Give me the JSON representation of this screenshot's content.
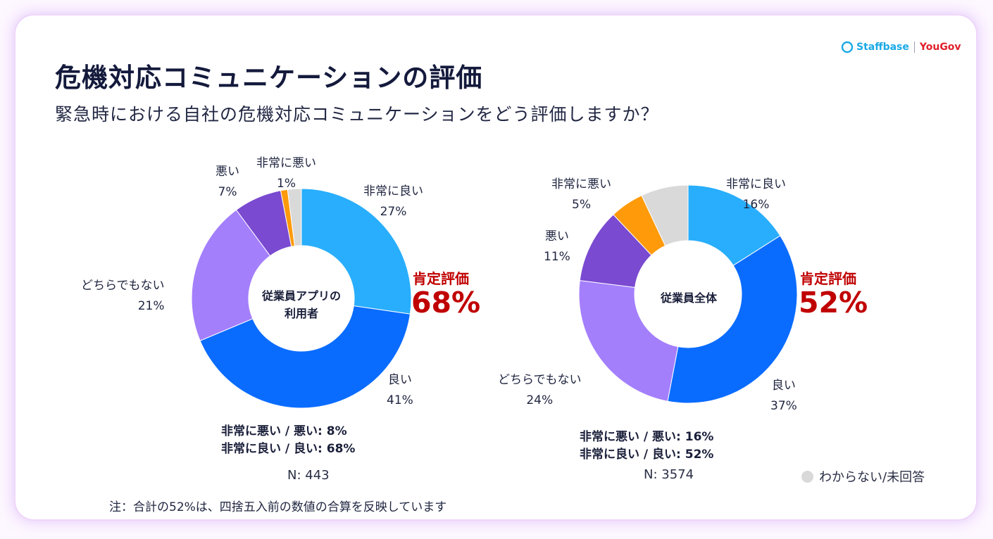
{
  "title": "危機対応コミュニケーションの評価",
  "subtitle": "緊急時における自社の危機対応コミュニケーションをどう評価しますか？",
  "logo": {
    "brand1": "Staffbase",
    "brand2": "YouGov"
  },
  "colors": {
    "very_good": "#28aefc",
    "good": "#0a6cff",
    "neutral": "#a47ffc",
    "bad": "#7a4ad0",
    "very_bad": "#ff9a0a",
    "unknown": "#d9d9d9",
    "accent_red": "#c00000"
  },
  "chart_data": [
    {
      "type": "pie",
      "variant": "donut",
      "center_label": [
        "従業員アプリの",
        "利用者"
      ],
      "categories": [
        "非常に良い",
        "良い",
        "どちらでもない",
        "悪い",
        "非常に悪い",
        "わからない/未回答"
      ],
      "values": [
        27,
        41,
        21,
        7,
        1,
        2
      ],
      "value_labels": [
        "27%",
        "41%",
        "21%",
        "7%",
        "1%",
        ""
      ],
      "positive_title": "肯定評価",
      "positive_value": "68%",
      "summary": [
        "非常に悪い / 悪い: 8%",
        "非常に良い / 良い: 68%"
      ],
      "n": "N: 443"
    },
    {
      "type": "pie",
      "variant": "donut",
      "center_label": [
        "従業員全体"
      ],
      "categories": [
        "非常に良い",
        "良い",
        "どちらでもない",
        "悪い",
        "非常に悪い",
        "わからない/未回答"
      ],
      "values": [
        16,
        37,
        24,
        11,
        5,
        7
      ],
      "value_labels": [
        "16%",
        "37%",
        "24%",
        "11%",
        "5%",
        ""
      ],
      "positive_title": "肯定評価",
      "positive_value": "52%",
      "summary": [
        "非常に悪い / 悪い: 16%",
        "非常に良い / 良い: 52%"
      ],
      "n": "N: 3574"
    }
  ],
  "legend": {
    "label": "わからない/未回答"
  },
  "note": "注：合計の52%は、四捨五入前の数値の合算を反映しています"
}
